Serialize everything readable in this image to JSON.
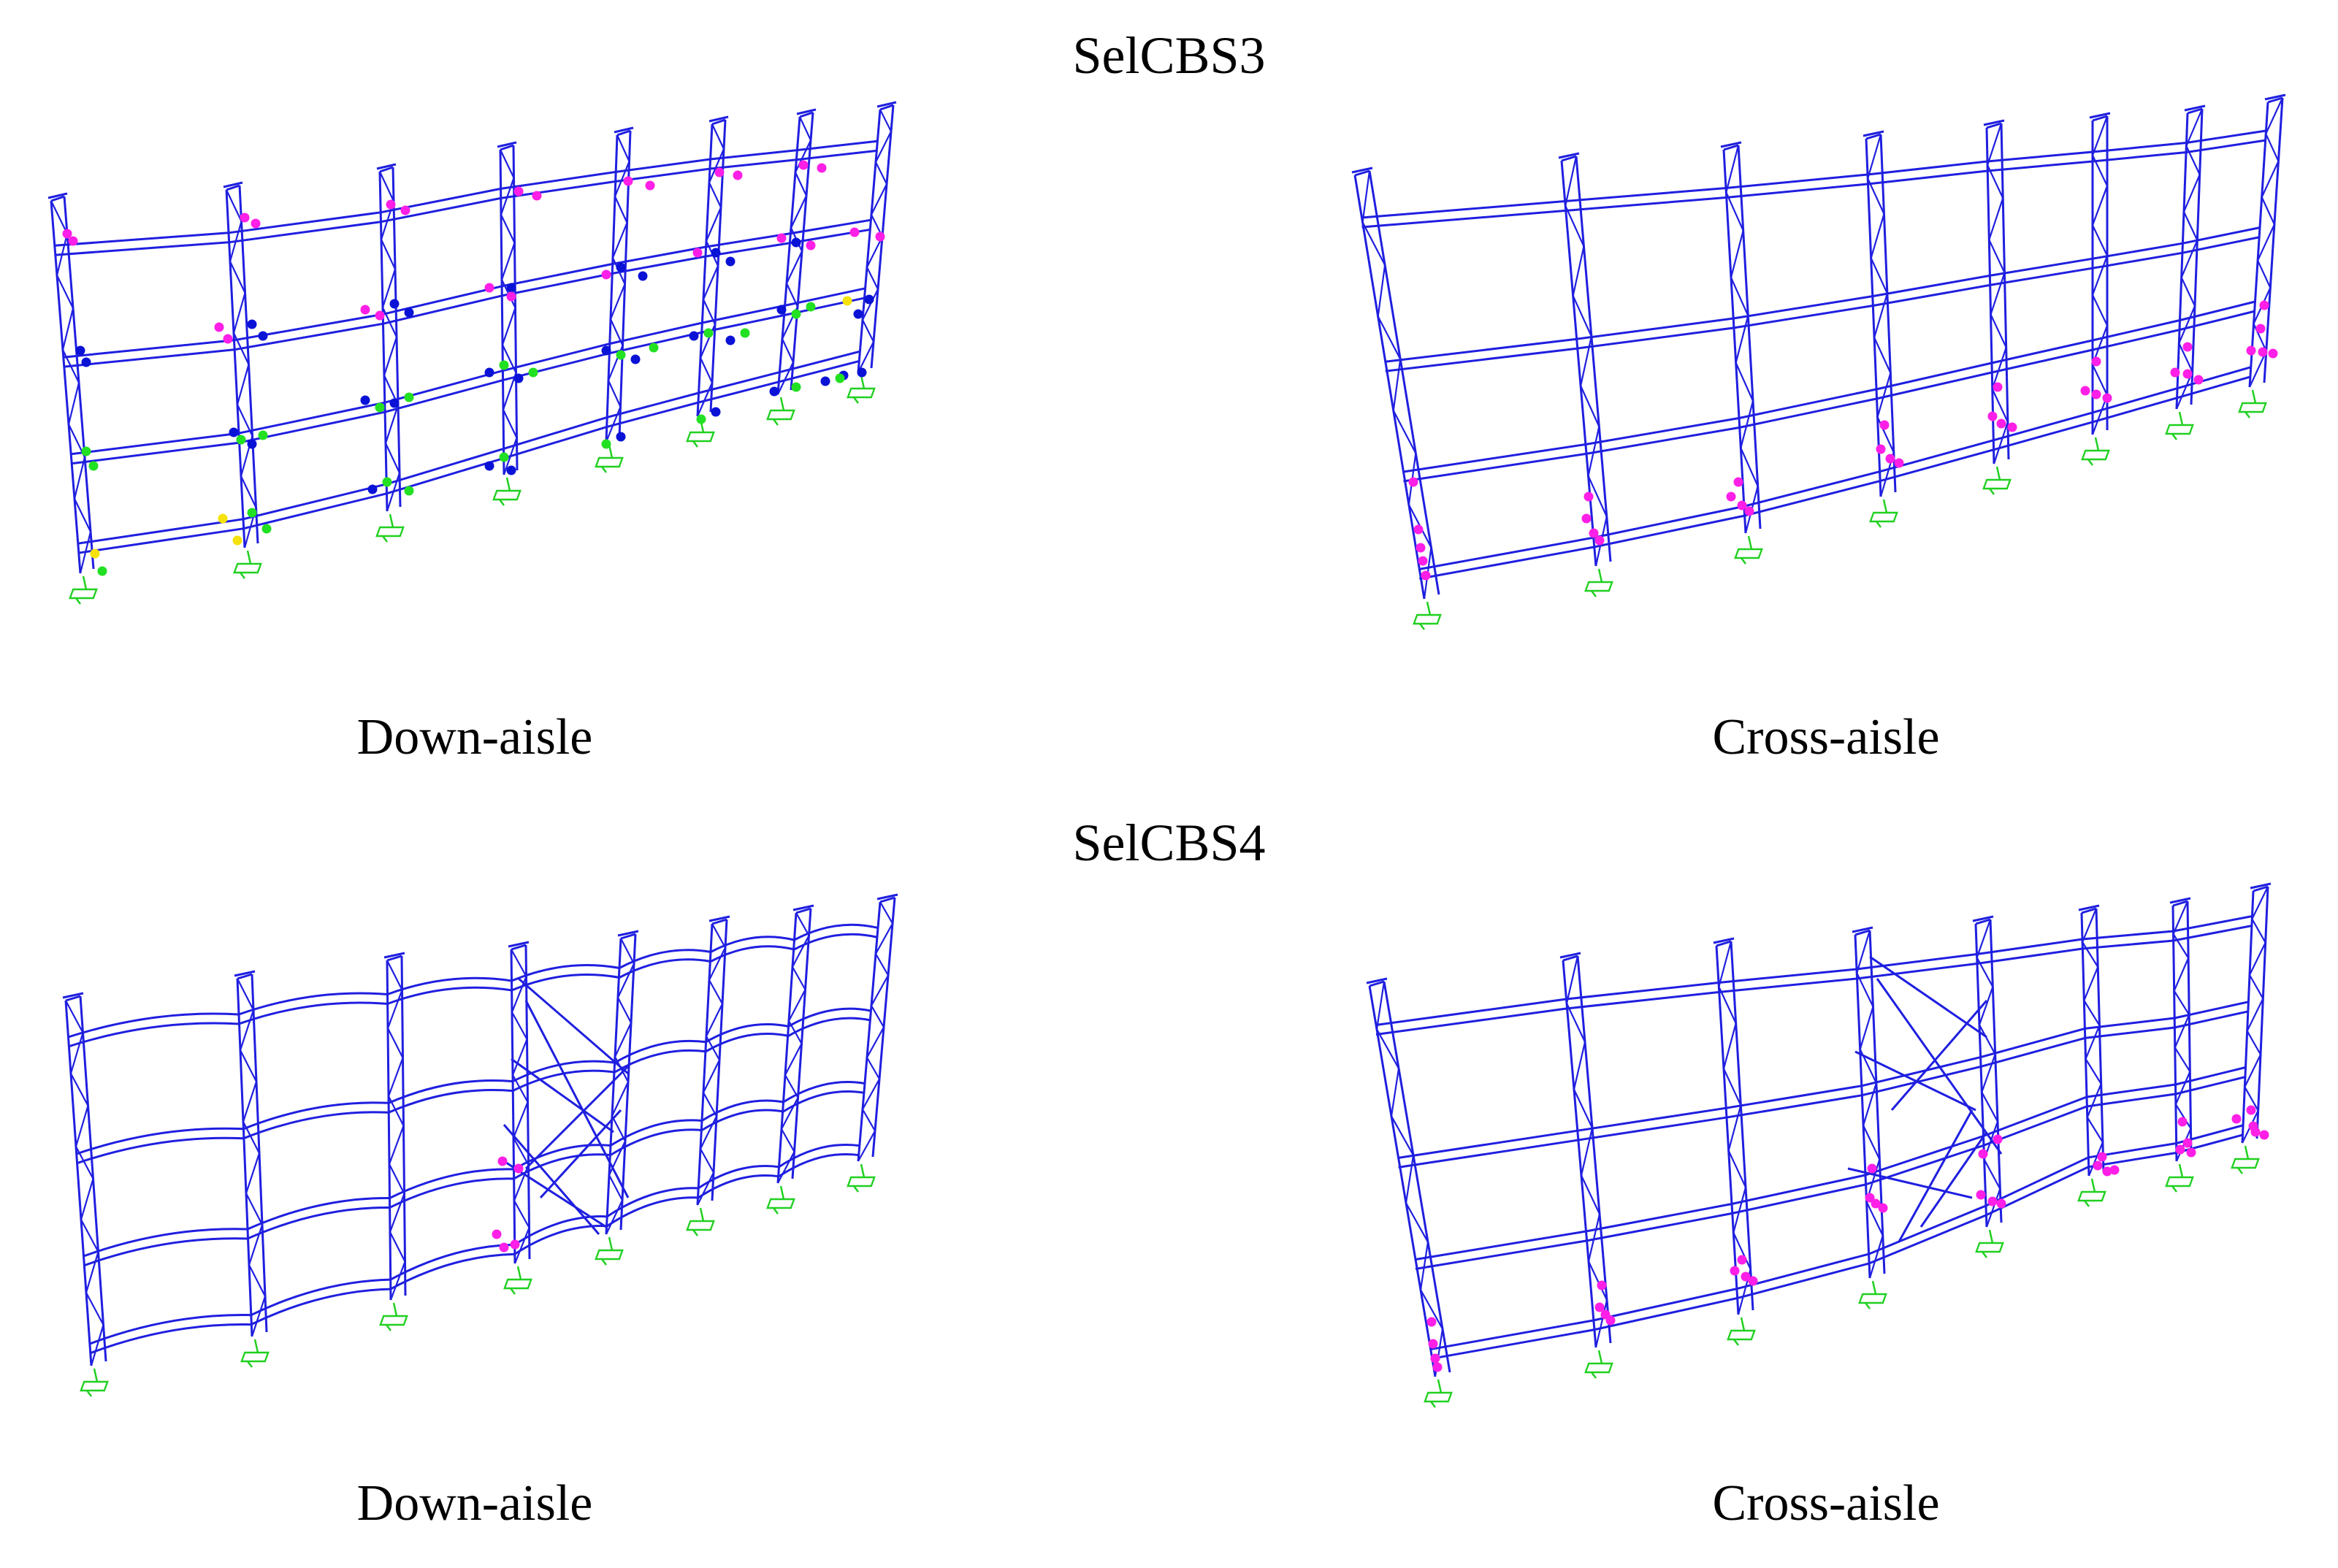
{
  "titles": {
    "top": "SelCBS3",
    "bottom": "SelCBS4"
  },
  "captions": {
    "top_left": "Down-aisle",
    "top_right": "Cross-aisle",
    "bottom_left": "Down-aisle",
    "bottom_right": "Cross-aisle"
  },
  "colors": {
    "structure": "#1f1fe0",
    "support": "#20d020",
    "hinge_magenta": "#ff1fe6",
    "hinge_blue": "#0a12d6",
    "hinge_green": "#22e022",
    "hinge_yellow": "#f5e20a",
    "background": "#ffffff"
  },
  "panels": [
    {
      "id": "selcbs3-down-aisle",
      "caption_key": "top_left",
      "diagonal_bay": false,
      "hinge_pattern": "distributed"
    },
    {
      "id": "selcbs3-cross-aisle",
      "caption_key": "top_right",
      "diagonal_bay": false,
      "hinge_pattern": "column-base"
    },
    {
      "id": "selcbs4-down-aisle",
      "caption_key": "bottom_left",
      "diagonal_bay": true,
      "hinge_pattern": "central-column"
    },
    {
      "id": "selcbs4-cross-aisle",
      "caption_key": "bottom_right",
      "diagonal_bay": true,
      "hinge_pattern": "column-base"
    }
  ]
}
